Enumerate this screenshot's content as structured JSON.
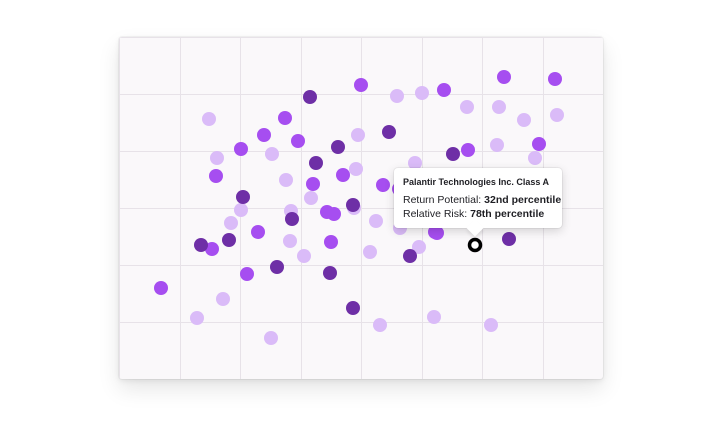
{
  "colors": {
    "background": "#faf8fa",
    "grid": "#e7e2e8",
    "light": "#dabbf8",
    "medium": "#a64ef0",
    "dark": "#6e2fa6",
    "selected_ring": "#000000"
  },
  "chart_data": {
    "type": "scatter",
    "title": "",
    "xlabel": "",
    "ylabel": "",
    "grid": true,
    "xlim": [
      0,
      484
    ],
    "ylim": [
      0,
      342
    ],
    "series": [
      {
        "shade": "light",
        "points": [
          [
            90,
            82
          ],
          [
            122,
            173
          ],
          [
            98,
            121
          ],
          [
            153,
            117
          ],
          [
            112,
            186
          ],
          [
            172,
            174
          ],
          [
            167,
            143
          ],
          [
            185,
            219
          ],
          [
            171,
            204
          ],
          [
            78,
            281
          ],
          [
            104,
            262
          ],
          [
            152,
            301
          ],
          [
            192,
            161
          ],
          [
            237,
            132
          ],
          [
            235,
            171
          ],
          [
            251,
            215
          ],
          [
            261,
            288
          ],
          [
            296,
            126
          ],
          [
            278,
            59
          ],
          [
            303,
            56
          ],
          [
            348,
            70
          ],
          [
            380,
            70
          ],
          [
            378,
            108
          ],
          [
            405,
            83
          ],
          [
            416,
            121
          ],
          [
            380,
            141
          ],
          [
            281,
            191
          ],
          [
            438,
            78
          ],
          [
            404,
            165
          ],
          [
            315,
            280
          ],
          [
            372,
            288
          ],
          [
            350,
            147
          ],
          [
            239,
            98
          ],
          [
            300,
            210
          ],
          [
            257,
            184
          ]
        ]
      },
      {
        "shade": "medium",
        "points": [
          [
            42,
            251
          ],
          [
            97,
            139
          ],
          [
            122,
            112
          ],
          [
            145,
            98
          ],
          [
            166,
            81
          ],
          [
            179,
            104
          ],
          [
            194,
            147
          ],
          [
            93,
            212
          ],
          [
            139,
            195
          ],
          [
            128,
            237
          ],
          [
            215,
            177
          ],
          [
            208,
            175
          ],
          [
            242,
            48
          ],
          [
            264,
            148
          ],
          [
            280,
            152
          ],
          [
            316,
            195
          ],
          [
            318,
            196
          ],
          [
            325,
            53
          ],
          [
            349,
            113
          ],
          [
            385,
            40
          ],
          [
            420,
            107
          ],
          [
            421,
            145
          ],
          [
            436,
            42
          ],
          [
            212,
            205
          ],
          [
            224,
            138
          ]
        ]
      },
      {
        "shade": "dark",
        "points": [
          [
            191,
            60
          ],
          [
            197,
            126
          ],
          [
            219,
            110
          ],
          [
            270,
            95
          ],
          [
            334,
            117
          ],
          [
            124,
            160
          ],
          [
            110,
            203
          ],
          [
            82,
            208
          ],
          [
            173,
            182
          ],
          [
            234,
            168
          ],
          [
            158,
            230
          ],
          [
            211,
            236
          ],
          [
            234,
            271
          ],
          [
            291,
            219
          ],
          [
            390,
            202
          ]
        ]
      }
    ],
    "selected_point": {
      "x": 356,
      "y": 208,
      "name": "Palantir Technologies Inc. Class A",
      "return_potential": "32nd percentile",
      "relative_risk": "78th percentile"
    }
  },
  "tooltip": {
    "title": "Palantir Technologies Inc. Class A",
    "line1_label": "Return Potential:",
    "line1_value": "32nd percentile",
    "line2_label": "Relative Risk:",
    "line2_value": "78th percentile"
  }
}
